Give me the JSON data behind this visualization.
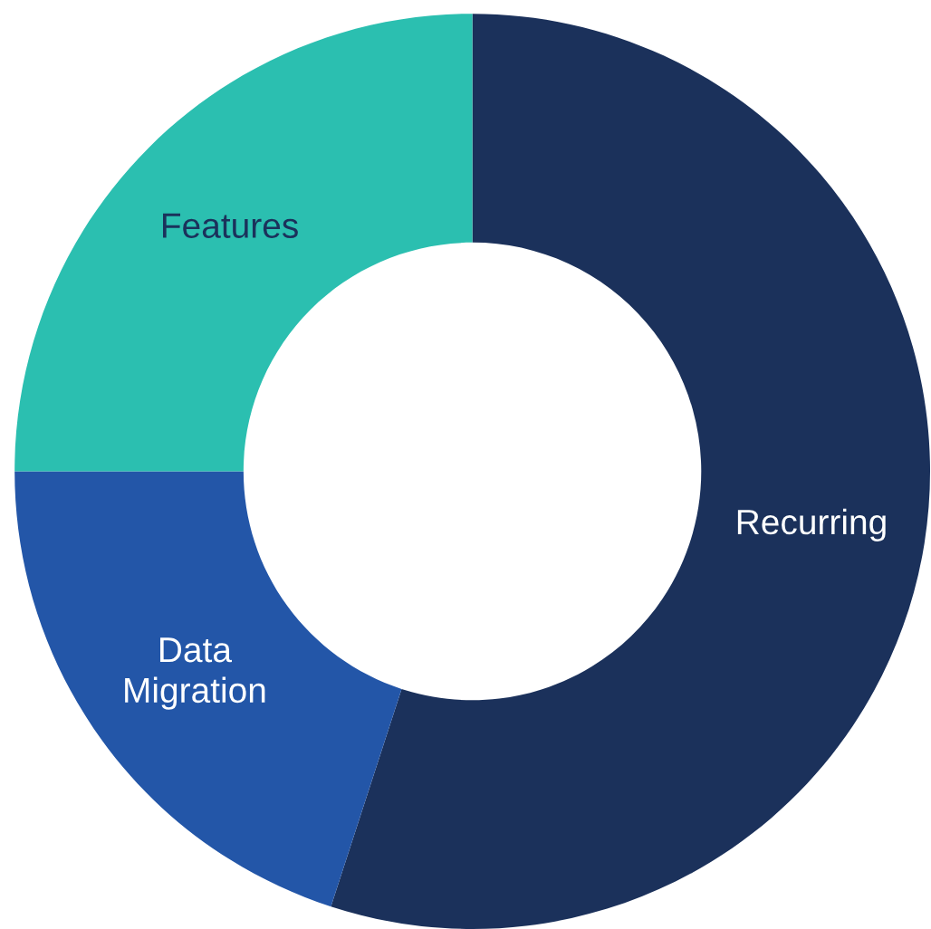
{
  "chart_data": {
    "type": "donut",
    "categories": [
      "Recurring",
      "Data Migration",
      "Features"
    ],
    "values": [
      55,
      20,
      25
    ],
    "colors": [
      "#1b315b",
      "#2356a8",
      "#2bbfb0"
    ]
  }
}
